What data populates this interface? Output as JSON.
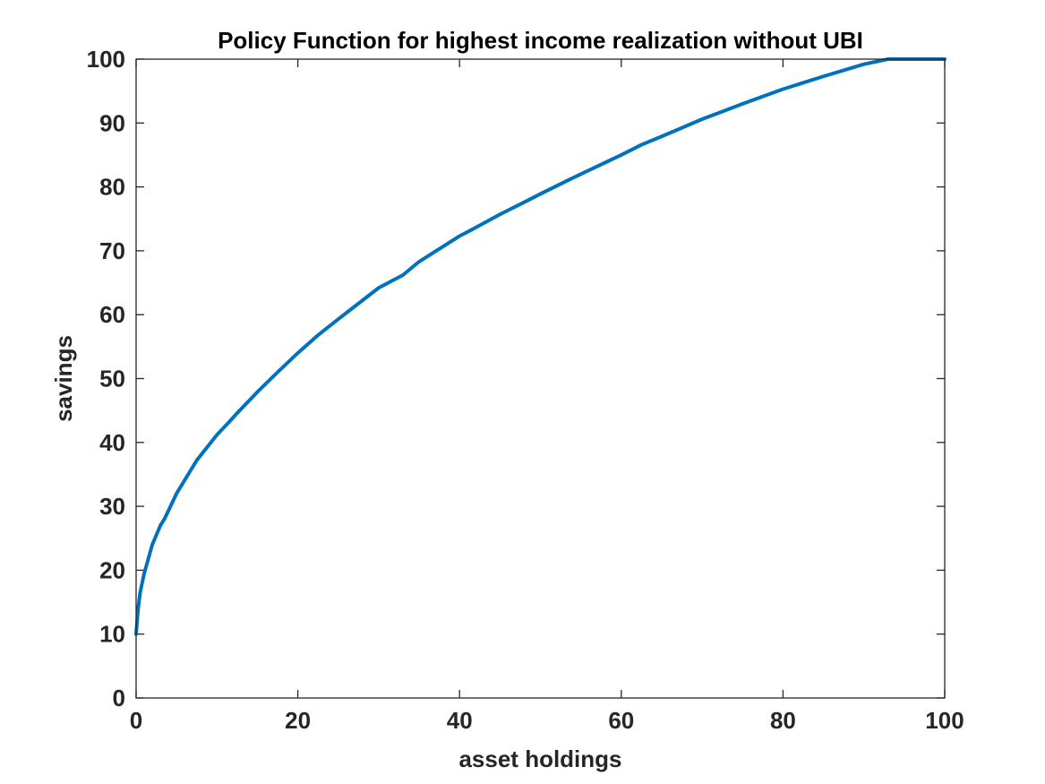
{
  "chart_data": {
    "type": "line",
    "title": "Policy Function for highest income realization without UBI",
    "xlabel": "asset holdings",
    "ylabel": "savings",
    "xlim": [
      0,
      100
    ],
    "ylim": [
      0,
      100
    ],
    "xticks": [
      0,
      20,
      40,
      60,
      80,
      100
    ],
    "yticks": [
      0,
      10,
      20,
      30,
      40,
      50,
      60,
      70,
      80,
      90,
      100
    ],
    "grid": false,
    "legend": "none",
    "colors": {
      "line": "#0072BD",
      "axis": "#262626",
      "background": "#ffffff"
    },
    "series": [
      {
        "x": [
          0,
          0.25,
          0.5,
          1,
          2,
          3,
          3.5,
          5,
          7.5,
          10,
          11.5,
          12.5,
          15,
          17.5,
          20,
          22.5,
          25,
          30,
          33,
          35,
          40,
          41.5,
          45,
          48,
          50,
          54,
          55,
          60,
          62.5,
          65,
          70,
          72.5,
          75,
          80,
          85,
          90,
          93,
          95,
          100
        ],
        "y": [
          10,
          14,
          16.5,
          19.5,
          24,
          27,
          28,
          32,
          37.2,
          41.2,
          43.2,
          44.6,
          47.9,
          51,
          54,
          56.8,
          59.3,
          64.2,
          66.2,
          68.3,
          72.3,
          73.3,
          75.7,
          77.6,
          78.9,
          81.4,
          82,
          85,
          86.6,
          87.9,
          90.6,
          91.8,
          93,
          95.3,
          97.3,
          99.2,
          100,
          100,
          100
        ]
      }
    ]
  }
}
